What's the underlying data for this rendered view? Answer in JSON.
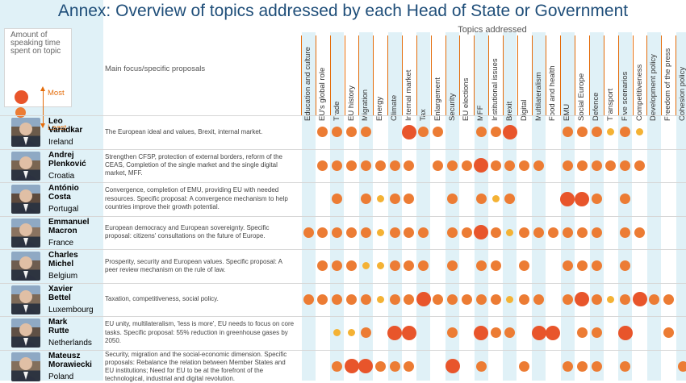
{
  "title": "Annex: Overview of topics addressed by each Head of State or Government",
  "legend": {
    "title": "Amount of speaking time spent on topic",
    "most_label": "Most",
    "least_label": "Least"
  },
  "topics_header": "Topics addressed",
  "main_focus_header": "Main focus/specific proposals",
  "colors": {
    "dot_large": "#e8552b",
    "dot_medium": "#ec7c34",
    "dot_small": "#f4b234",
    "stripe": "#e0f1f7",
    "title": "#1f4e79"
  },
  "chart_data": {
    "type": "table",
    "size_scale": "3 = most speaking time, 2 = medium, 1 = least, 0 = topic not addressed",
    "topics": [
      "Education and culture",
      "EU's global role",
      "Trade",
      "EU history",
      "Migration",
      "Energy",
      "Climate",
      "Internal market",
      "Tax",
      "Enlargement",
      "Security",
      "EU elections",
      "MFF",
      "Institutional issues",
      "Brexit",
      "Digital",
      "Multilateralism",
      "Food and health",
      "EMU",
      "Social Europe",
      "Defence",
      "Transport",
      "Five scenarios",
      "Competitiveness",
      "Development policy",
      "Freedom of the press",
      "Cohesion policy"
    ],
    "leaders": [
      {
        "first_name": "Leo",
        "last_name": "Varadkar",
        "country": "Ireland",
        "focus": "The European ideal and values, Brexit, internal market.",
        "values": [
          0,
          2,
          2,
          2,
          2,
          0,
          0,
          3,
          2,
          2,
          0,
          0,
          2,
          2,
          3,
          0,
          0,
          0,
          2,
          2,
          2,
          1,
          2,
          1,
          0,
          0,
          0
        ]
      },
      {
        "first_name": "Andrej",
        "last_name": "Plenković",
        "country": "Croatia",
        "focus": "Strengthen CFSP, protection of external borders, reform of the CEAS, Completion of the single market and the single digital market, MFF.",
        "values": [
          0,
          2,
          2,
          2,
          2,
          2,
          2,
          2,
          0,
          2,
          2,
          2,
          3,
          2,
          2,
          2,
          2,
          0,
          2,
          2,
          2,
          2,
          2,
          2,
          0,
          0,
          0
        ]
      },
      {
        "first_name": "António",
        "last_name": "Costa",
        "country": "Portugal",
        "focus": "Convergence, completion of EMU, providing EU with needed resources. Specific proposal: A convergence mechanism to help countries improve their growth potential.",
        "values": [
          0,
          0,
          2,
          0,
          2,
          1,
          2,
          2,
          0,
          0,
          2,
          0,
          2,
          1,
          2,
          0,
          0,
          0,
          3,
          3,
          2,
          0,
          2,
          0,
          0,
          0,
          0
        ]
      },
      {
        "first_name": "Emmanuel",
        "last_name": "Macron",
        "country": "France",
        "focus": "European democracy and European sovereignty. Specific proposal: citizens' consultations on the future of Europe.",
        "values": [
          2,
          2,
          2,
          2,
          2,
          1,
          2,
          2,
          2,
          0,
          2,
          2,
          3,
          2,
          1,
          2,
          2,
          2,
          2,
          2,
          2,
          0,
          2,
          2,
          0,
          0,
          0
        ]
      },
      {
        "first_name": "Charles",
        "last_name": "Michel",
        "country": "Belgium",
        "focus": "Prosperity, security and European values. Specific proposal: A peer review mechanism on the rule of law.",
        "values": [
          0,
          2,
          2,
          2,
          1,
          1,
          2,
          2,
          2,
          0,
          2,
          0,
          2,
          2,
          0,
          2,
          0,
          0,
          2,
          2,
          2,
          0,
          2,
          0,
          0,
          0,
          0
        ]
      },
      {
        "first_name": "Xavier",
        "last_name": "Bettel",
        "country": "Luxembourg",
        "focus": "Taxation, competitiveness, social policy.",
        "values": [
          2,
          2,
          2,
          2,
          2,
          1,
          2,
          2,
          3,
          2,
          2,
          2,
          2,
          2,
          1,
          2,
          2,
          0,
          2,
          3,
          2,
          1,
          2,
          3,
          2,
          2,
          0
        ]
      },
      {
        "first_name": "Mark",
        "last_name": "Rutte",
        "country": "Netherlands",
        "focus": "EU unity, multilateralism, 'less is more', EU needs to focus on core tasks. Specific proposal: 55% reduction in greenhouse gases by 2050.",
        "values": [
          0,
          0,
          1,
          1,
          2,
          0,
          3,
          3,
          0,
          0,
          2,
          0,
          3,
          2,
          2,
          0,
          3,
          3,
          0,
          2,
          2,
          0,
          3,
          0,
          0,
          2,
          0
        ]
      },
      {
        "first_name": "Mateusz",
        "last_name": "Morawiecki",
        "country": "Poland",
        "focus": "Security, migration and the social-economic dimension. Specific proposals: Rebalance the relation between Member States and EU institutions; Need for EU to be at the forefront of the technological, industrial and digital revolution.",
        "values": [
          0,
          0,
          2,
          3,
          3,
          2,
          2,
          2,
          0,
          0,
          3,
          0,
          2,
          0,
          0,
          2,
          0,
          0,
          2,
          2,
          2,
          0,
          2,
          0,
          0,
          0,
          2
        ]
      }
    ]
  }
}
